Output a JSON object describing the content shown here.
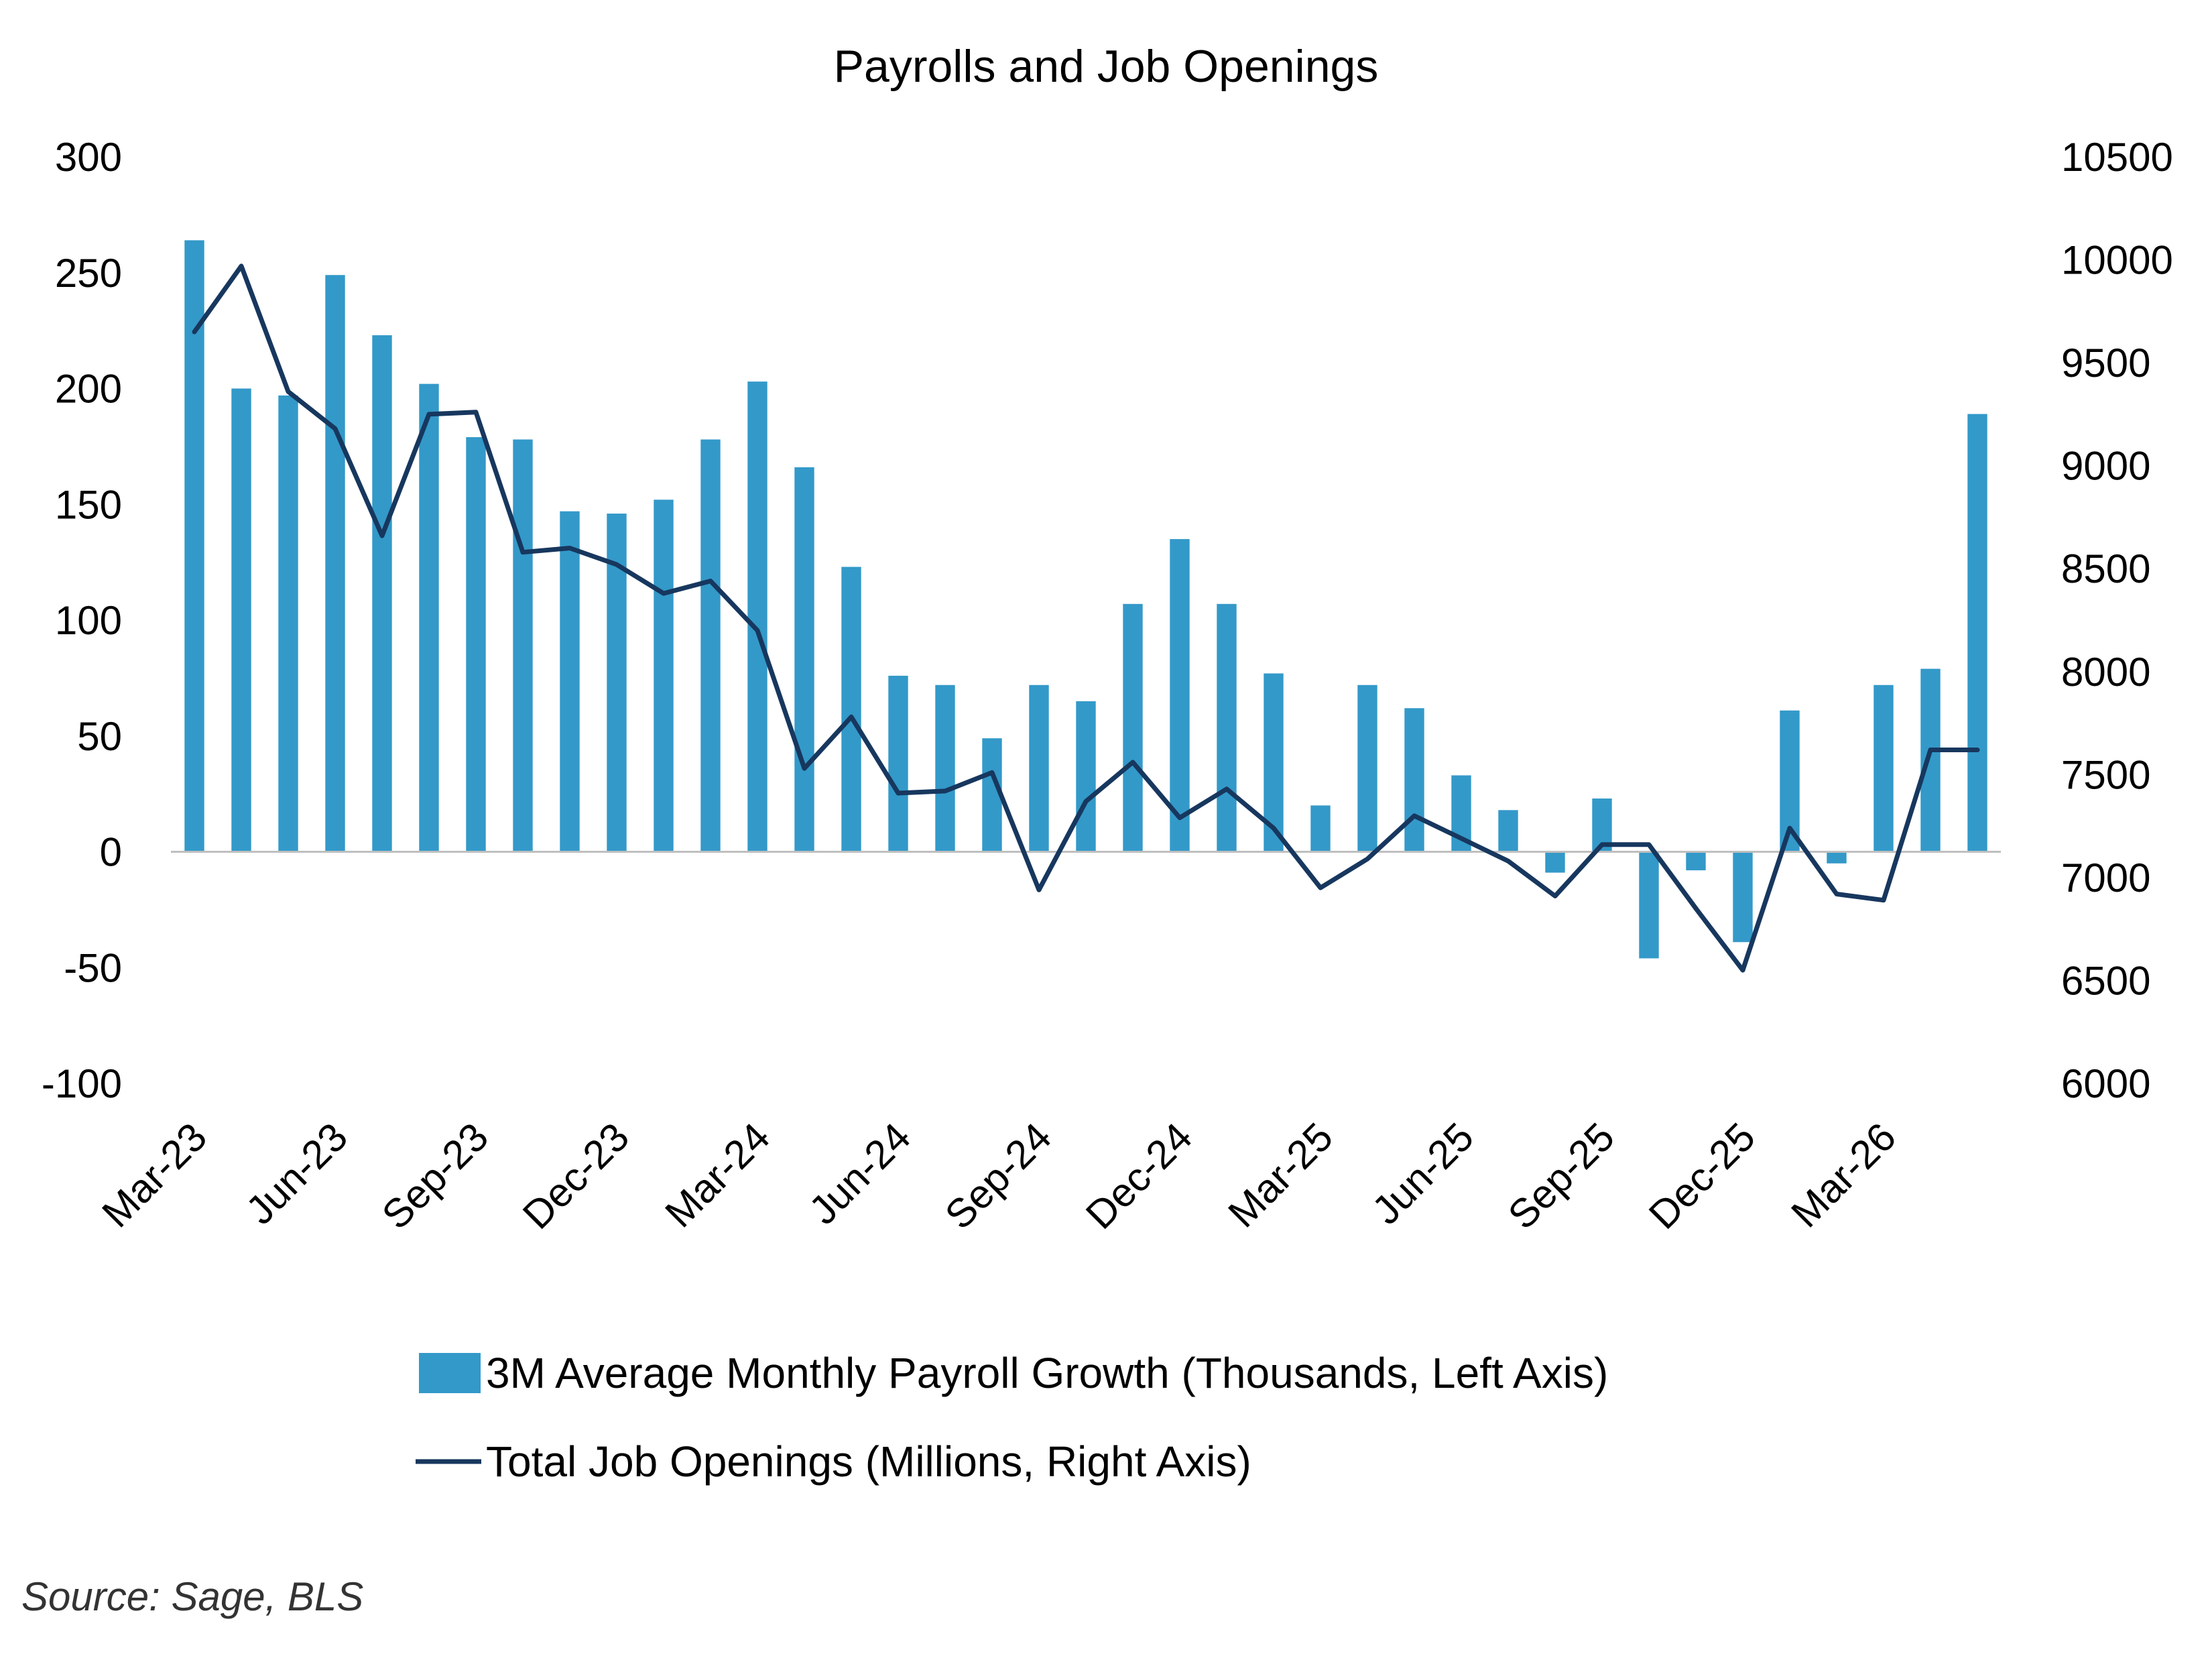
{
  "chart_data": {
    "type": "bar+line",
    "title": "Payrolls and Job Openings",
    "source": "Source: Sage, BLS",
    "x_tick_labels": [
      "Mar-23",
      "Jun-23",
      "Sep-23",
      "Dec-23",
      "Mar-24",
      "Jun-24",
      "Sep-24",
      "Dec-24",
      "Mar-25",
      "Jun-25",
      "Sep-25",
      "Dec-25",
      "Mar-26"
    ],
    "categories": [
      "Mar-23",
      "Apr-23",
      "May-23",
      "Jun-23",
      "Jul-23",
      "Aug-23",
      "Sep-23",
      "Oct-23",
      "Nov-23",
      "Dec-23",
      "Jan-24",
      "Feb-24",
      "Mar-24",
      "Apr-24",
      "May-24",
      "Jun-24",
      "Jul-24",
      "Aug-24",
      "Sep-24",
      "Oct-24",
      "Nov-24",
      "Dec-24",
      "Jan-25",
      "Feb-25",
      "Mar-25",
      "Apr-25",
      "May-25",
      "Jun-25",
      "Jul-25",
      "Aug-25",
      "Sep-25",
      "Oct-25",
      "Nov-25",
      "Dec-25",
      "Jan-26",
      "Feb-26",
      "Mar-26",
      "Apr-26",
      "May-26"
    ],
    "left_axis": {
      "min": -100,
      "max": 300,
      "step": 50,
      "ticks": [
        "-100",
        "-50",
        "0",
        "50",
        "100",
        "150",
        "200",
        "250",
        "300"
      ]
    },
    "right_axis": {
      "min": 6000,
      "max": 10500,
      "step": 500,
      "ticks": [
        "6000",
        "6500",
        "7000",
        "7500",
        "8000",
        "8500",
        "9000",
        "9500",
        "10000",
        "10500"
      ]
    },
    "series": [
      {
        "name": "3M Average Monthly Payroll Growth (Thousands, Left Axis)",
        "type": "bar",
        "axis": "left",
        "color": "#3399c9",
        "values": [
          264,
          200,
          197,
          249,
          223,
          202,
          179,
          178,
          147,
          146,
          152,
          178,
          203,
          166,
          123,
          76,
          72,
          49,
          72,
          65,
          107,
          135,
          107,
          77,
          20,
          72,
          62,
          33,
          18,
          -9,
          23,
          -46,
          -8,
          -39,
          61,
          -5,
          72,
          79,
          189
        ]
      },
      {
        "name": "Total Job Openings (Millions, Right Axis)",
        "type": "line",
        "axis": "right",
        "color": "#17375e",
        "values": [
          9650,
          9970,
          9360,
          9180,
          8660,
          9250,
          9260,
          8580,
          8600,
          8520,
          8380,
          8440,
          8200,
          7530,
          7780,
          7410,
          7420,
          7510,
          6940,
          7370,
          7560,
          7290,
          7430,
          7240,
          6950,
          7090,
          7300,
          7190,
          7080,
          6910,
          7160,
          7160,
          6850,
          6550,
          7240,
          6920,
          6890,
          7620,
          7620
        ]
      }
    ],
    "legend": {
      "position": "bottom"
    },
    "grid": false
  }
}
